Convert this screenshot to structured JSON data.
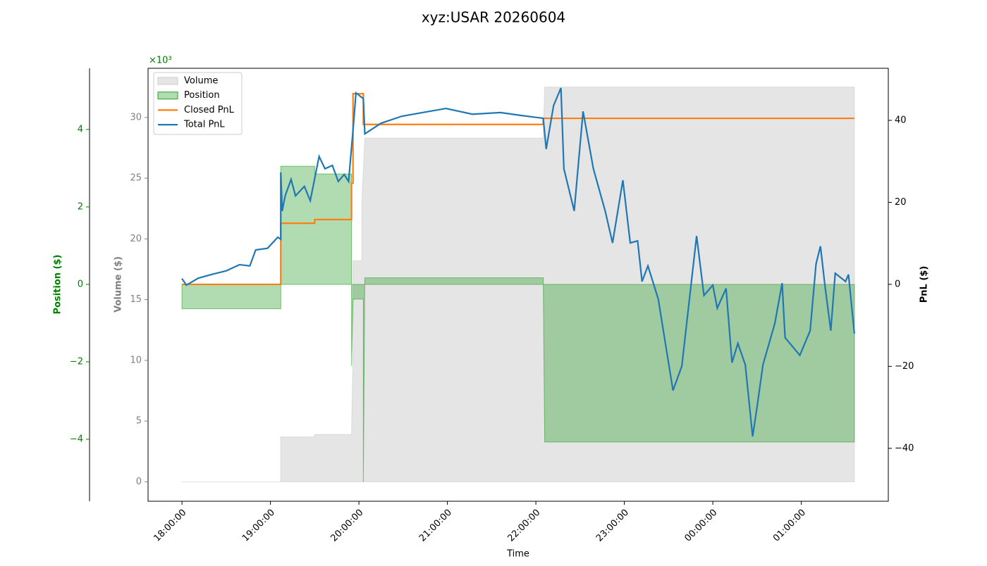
{
  "chart_data": {
    "type": "line",
    "title": "xyz:USAR 20260604",
    "xlabel": "Time",
    "xlim": [
      "17:37:00",
      "01:59:00"
    ],
    "xticks": [
      "18:00:00",
      "19:00:00",
      "20:00:00",
      "21:00:00",
      "22:00:00",
      "23:00:00",
      "00:00:00",
      "01:00:00"
    ],
    "legend": "upper left",
    "axes": {
      "position": {
        "label": "Position ($)",
        "scale_label": "×10³",
        "color": "#008000",
        "ylim": [
          -5.6,
          5.58
        ],
        "yticks": [
          {
            "value": -4,
            "label": "−4"
          },
          {
            "value": -2,
            "label": "−2"
          },
          0,
          2,
          4
        ]
      },
      "volume": {
        "label": "Volume ($)",
        "color": "#808080",
        "ylim": [
          -1.6,
          34.05
        ],
        "yticks": [
          0,
          5,
          10,
          15,
          20,
          25,
          30
        ]
      },
      "pnl": {
        "label": "PnL ($)",
        "color": "#000000",
        "ylim": [
          -52.9,
          52.7
        ],
        "yticks": [
          {
            "value": -40,
            "label": "−40"
          },
          {
            "value": -20,
            "label": "−20"
          },
          0,
          20,
          40
        ]
      }
    },
    "series": [
      {
        "name": "Volume",
        "type": "area",
        "axis": "volume",
        "color": "#cccccc",
        "x": [
          "18:00:00",
          "19:07:00",
          "19:07:00",
          "19:30:00",
          "19:30:00",
          "19:55:00",
          "19:56:00",
          "19:56:00",
          "20:02:00",
          "20:02:00",
          "20:04:00",
          "22:05:00",
          "22:06:00",
          "01:36:00"
        ],
        "values": [
          0,
          0,
          3.7,
          3.7,
          3.9,
          3.9,
          10.5,
          18.2,
          18.2,
          23.0,
          28.3,
          28.3,
          32.5,
          32.5
        ]
      },
      {
        "name": "Position",
        "type": "area",
        "axis": "position",
        "color": "#2ca02c",
        "x": [
          "18:00:00",
          "19:07:00",
          "19:07:00",
          "19:30:00",
          "19:30:00",
          "19:55:00",
          "19:55:00",
          "19:56:00",
          "20:03:00",
          "20:03:00",
          "20:04:00",
          "22:05:00",
          "22:06:00",
          "01:36:00"
        ],
        "values": [
          -0.63,
          -0.63,
          3.05,
          3.05,
          2.85,
          2.85,
          -2.1,
          -0.38,
          -0.38,
          -5.1,
          0.17,
          0.17,
          -4.07,
          -4.07
        ]
      },
      {
        "name": "Closed PnL",
        "type": "line",
        "axis": "pnl",
        "color": "#ff7f0e",
        "x": [
          "18:00:00",
          "19:07:00",
          "19:07:00",
          "19:30:00",
          "19:30:00",
          "19:55:00",
          "19:55:00",
          "19:56:00",
          "19:56:00",
          "20:03:00",
          "20:03:00",
          "22:05:00",
          "22:05:00",
          "01:36:00"
        ],
        "values": [
          0,
          0,
          14.9,
          14.9,
          15.8,
          15.8,
          24.7,
          24.7,
          46.5,
          46.5,
          39.0,
          39.0,
          40.5,
          40.5
        ]
      },
      {
        "name": "Total PnL",
        "type": "line",
        "axis": "pnl",
        "color": "#1f77b4",
        "x": [
          "18:00:00",
          "18:03:00",
          "18:11:00",
          "18:20:00",
          "18:30:00",
          "18:39:00",
          "18:46:00",
          "18:50:00",
          "18:58:00",
          "19:05:00",
          "19:07:00",
          "19:07:00",
          "19:08:00",
          "19:10:00",
          "19:14:00",
          "19:17:00",
          "19:23:00",
          "19:27:00",
          "19:33:00",
          "19:37:00",
          "19:42:00",
          "19:46:00",
          "19:50:00",
          "19:53:00",
          "19:56:00",
          "19:58:00",
          "20:03:00",
          "20:04:00",
          "20:15:00",
          "20:29:00",
          "20:43:00",
          "20:59:00",
          "21:17:00",
          "21:36:00",
          "21:50:00",
          "22:05:00",
          "22:07:00",
          "22:12:00",
          "22:17:00",
          "22:19:00",
          "22:26:00",
          "22:32:00",
          "22:39:00",
          "22:47:00",
          "22:52:00",
          "22:59:00",
          "23:04:00",
          "23:09:00",
          "23:12:00",
          "23:16:00",
          "23:23:00",
          "23:33:00",
          "23:39:00",
          "23:49:00",
          "23:54:00",
          "00:00:00",
          "00:03:00",
          "00:09:00",
          "00:13:00",
          "00:17:00",
          "00:22:00",
          "00:27:00",
          "00:30:00",
          "00:34:00",
          "00:42:00",
          "00:47:00",
          "00:49:00",
          "00:59:00",
          "01:06:00",
          "01:10:00",
          "01:13:00",
          "01:16:00",
          "01:20:00",
          "01:23:00",
          "01:30:00",
          "01:32:00",
          "01:36:00"
        ],
        "values": [
          1.4,
          -0.2,
          1.5,
          2.4,
          3.3,
          4.8,
          4.5,
          8.4,
          8.8,
          11.5,
          11.0,
          27.3,
          17.9,
          21.6,
          25.6,
          21.6,
          23.9,
          20.4,
          31.2,
          28.2,
          29.0,
          25.1,
          26.8,
          25.1,
          37.6,
          46.7,
          45.3,
          36.7,
          39.3,
          41.0,
          41.9,
          42.9,
          41.5,
          41.9,
          41.2,
          40.5,
          33.0,
          43.6,
          47.9,
          28.2,
          17.9,
          42.2,
          28.2,
          17.9,
          10.1,
          25.4,
          10.1,
          10.6,
          0.7,
          4.5,
          -3.6,
          -25.9,
          -19.9,
          11.8,
          -2.7,
          -0.2,
          -5.8,
          -1.0,
          -19.1,
          -14.4,
          -19.6,
          -37.1,
          -29.9,
          -19.6,
          -9.6,
          0.3,
          -13.0,
          -17.3,
          -11.3,
          5.0,
          9.3,
          -0.2,
          -11.3,
          2.7,
          0.7,
          2.4,
          -12.0
        ]
      }
    ]
  }
}
